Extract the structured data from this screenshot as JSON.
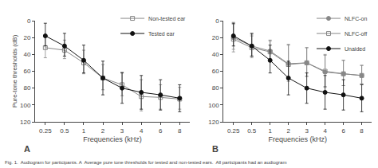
{
  "chart_data": [
    {
      "type": "line",
      "categories": [
        "0.25",
        "0.5",
        "1",
        "2",
        "3",
        "4",
        "6",
        "8"
      ],
      "xlabel": "Frequencies (kHz)",
      "ylabel": "Pure-tone thresholds (dB)",
      "ylim": [
        120,
        0
      ],
      "yticks": [
        0,
        20,
        40,
        60,
        80,
        100,
        120
      ],
      "grid": false,
      "legend": "upper right",
      "annotations": [
        "A"
      ],
      "series": [
        {
          "name": "Non-tested ear",
          "color": "#888888",
          "marker": "square-open",
          "values": [
            32,
            35,
            50,
            68,
            76,
            90,
            91,
            93
          ],
          "err_lo": [
            15,
            12,
            15,
            16,
            15,
            20,
            15,
            14
          ],
          "err_hi": [
            12,
            10,
            13,
            14,
            13,
            17,
            14,
            12
          ]
        },
        {
          "name": "Tested ear",
          "color": "#111111",
          "marker": "circle",
          "values": [
            18,
            30,
            47,
            68,
            80,
            85,
            88,
            92
          ],
          "err_lo": [
            15,
            15,
            18,
            20,
            18,
            20,
            18,
            16
          ],
          "err_hi": [
            12,
            12,
            15,
            20,
            18,
            20,
            18,
            16
          ]
        }
      ]
    },
    {
      "type": "line",
      "categories": [
        "0.25",
        "0.5",
        "1",
        "2",
        "3",
        "4",
        "6",
        "8"
      ],
      "xlabel": "Frequencies (kHz)",
      "ylim": [
        120,
        0
      ],
      "yticks": [
        0,
        20,
        40,
        60,
        80,
        100,
        120
      ],
      "grid": false,
      "legend": "upper right",
      "annotations": [
        "B",
        "Fig. 1.  Audiogram for participants. A  Average pure tone thresholds for tested and non-tested ears.  All participants had an audiogram"
      ],
      "series": [
        {
          "name": "NLFC-on",
          "color": "#888888",
          "marker": "circle",
          "values": [
            20,
            30,
            36,
            51,
            50,
            61,
            63,
            65
          ],
          "err_lo": [
            18,
            14,
            12,
            22,
            18,
            20,
            16,
            12
          ],
          "err_hi": [
            14,
            12,
            12,
            18,
            16,
            18,
            14,
            10
          ]
        },
        {
          "name": "NLFC-off",
          "color": "#888888",
          "marker": "square-open",
          "values": [
            22,
            32,
            37,
            52,
            50,
            60,
            63,
            65
          ],
          "err_lo": [
            18,
            14,
            14,
            24,
            18,
            20,
            16,
            12
          ],
          "err_hi": [
            15,
            12,
            12,
            20,
            16,
            18,
            14,
            10
          ]
        },
        {
          "name": "Unaided",
          "color": "#111111",
          "marker": "circle",
          "values": [
            18,
            30,
            47,
            68,
            80,
            85,
            88,
            92
          ],
          "err_lo": [
            15,
            15,
            18,
            20,
            18,
            20,
            18,
            16
          ],
          "err_hi": [
            12,
            12,
            15,
            20,
            18,
            20,
            18,
            16
          ]
        }
      ]
    }
  ]
}
